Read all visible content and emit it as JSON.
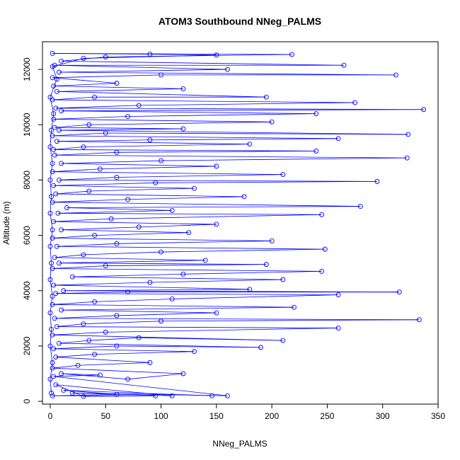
{
  "colors": {
    "series": "#0000ff",
    "axis": "#000000",
    "background": "#ffffff"
  },
  "chart_data": {
    "type": "line",
    "title": "ATOM3 Southbound NNeg_PALMS",
    "xlabel": "NNeg_PALMS",
    "ylabel": "Altitude (m)",
    "xlim": [
      -7,
      350
    ],
    "ylim": [
      -100,
      13000
    ],
    "xticks": [
      0,
      50,
      100,
      150,
      200,
      250,
      300,
      350
    ],
    "yticks": [
      0,
      2000,
      4000,
      6000,
      8000,
      10000,
      12000
    ],
    "grid": false,
    "legend": "none",
    "series": [
      {
        "markers": "open-circle",
        "points": [
          [
            146,
            200
          ],
          [
            12,
            400
          ],
          [
            60,
            250
          ],
          [
            2,
            200
          ],
          [
            95,
            200
          ],
          [
            30,
            180
          ],
          [
            5,
            600
          ],
          [
            110,
            200
          ],
          [
            20,
            300
          ],
          [
            160,
            200
          ],
          [
            3,
            900
          ],
          [
            45,
            950
          ],
          [
            10,
            1000
          ],
          [
            70,
            800
          ],
          [
            120,
            1000
          ],
          [
            2,
            1200
          ],
          [
            25,
            1300
          ],
          [
            90,
            1400
          ],
          [
            5,
            1600
          ],
          [
            40,
            1700
          ],
          [
            130,
            1800
          ],
          [
            3,
            1900
          ],
          [
            60,
            2000
          ],
          [
            190,
            1950
          ],
          [
            8,
            2100
          ],
          [
            35,
            2200
          ],
          [
            80,
            2300
          ],
          [
            210,
            2200
          ],
          [
            2,
            2400
          ],
          [
            50,
            2500
          ],
          [
            260,
            2650
          ],
          [
            6,
            2700
          ],
          [
            30,
            2800
          ],
          [
            100,
            2900
          ],
          [
            333,
            2950
          ],
          [
            4,
            3000
          ],
          [
            60,
            3100
          ],
          [
            150,
            3200
          ],
          [
            10,
            3300
          ],
          [
            220,
            3400
          ],
          [
            2,
            3500
          ],
          [
            40,
            3600
          ],
          [
            110,
            3700
          ],
          [
            260,
            3850
          ],
          [
            5,
            3900
          ],
          [
            70,
            3950
          ],
          [
            315,
            3950
          ],
          [
            12,
            4000
          ],
          [
            180,
            4050
          ],
          [
            3,
            4200
          ],
          [
            90,
            4300
          ],
          [
            210,
            4400
          ],
          [
            20,
            4500
          ],
          [
            120,
            4600
          ],
          [
            245,
            4700
          ],
          [
            2,
            4800
          ],
          [
            50,
            4900
          ],
          [
            195,
            4950
          ],
          [
            8,
            5000
          ],
          [
            140,
            5100
          ],
          [
            4,
            5200
          ],
          [
            30,
            5300
          ],
          [
            100,
            5400
          ],
          [
            248,
            5500
          ],
          [
            6,
            5600
          ],
          [
            60,
            5700
          ],
          [
            200,
            5800
          ],
          [
            2,
            5900
          ],
          [
            40,
            6000
          ],
          [
            125,
            6100
          ],
          [
            10,
            6200
          ],
          [
            80,
            6300
          ],
          [
            150,
            6400
          ],
          [
            3,
            6500
          ],
          [
            55,
            6600
          ],
          [
            245,
            6750
          ],
          [
            7,
            6800
          ],
          [
            110,
            6900
          ],
          [
            15,
            7000
          ],
          [
            280,
            7050
          ],
          [
            2,
            7200
          ],
          [
            70,
            7300
          ],
          [
            175,
            7400
          ],
          [
            5,
            7500
          ],
          [
            35,
            7600
          ],
          [
            130,
            7700
          ],
          [
            3,
            7800
          ],
          [
            95,
            7900
          ],
          [
            295,
            7950
          ],
          [
            8,
            8000
          ],
          [
            60,
            8100
          ],
          [
            210,
            8200
          ],
          [
            2,
            8300
          ],
          [
            45,
            8400
          ],
          [
            150,
            8500
          ],
          [
            10,
            8600
          ],
          [
            100,
            8700
          ],
          [
            322,
            8800
          ],
          [
            4,
            8900
          ],
          [
            60,
            9000
          ],
          [
            240,
            9050
          ],
          [
            3,
            9100
          ],
          [
            30,
            9200
          ],
          [
            180,
            9300
          ],
          [
            6,
            9400
          ],
          [
            90,
            9450
          ],
          [
            260,
            9500
          ],
          [
            2,
            9600
          ],
          [
            50,
            9700
          ],
          [
            323,
            9650
          ],
          [
            8,
            9800
          ],
          [
            120,
            9850
          ],
          [
            4,
            9900
          ],
          [
            35,
            10000
          ],
          [
            200,
            10100
          ],
          [
            3,
            10200
          ],
          [
            70,
            10300
          ],
          [
            240,
            10400
          ],
          [
            10,
            10500
          ],
          [
            337,
            10550
          ],
          [
            5,
            10600
          ],
          [
            80,
            10700
          ],
          [
            275,
            10800
          ],
          [
            2,
            10900
          ],
          [
            40,
            11000
          ],
          [
            195,
            11000
          ],
          [
            6,
            11200
          ],
          [
            120,
            11300
          ],
          [
            3,
            11400
          ],
          [
            60,
            11500
          ],
          [
            2,
            11700
          ],
          [
            100,
            11800
          ],
          [
            312,
            11800
          ],
          [
            8,
            11900
          ],
          [
            160,
            12000
          ],
          [
            4,
            12150
          ],
          [
            265,
            12150
          ],
          [
            10,
            12300
          ],
          [
            50,
            12450
          ],
          [
            218,
            12540
          ],
          [
            2,
            12580
          ],
          [
            90,
            12550
          ],
          [
            150,
            12520
          ],
          [
            30,
            12400
          ],
          [
            2,
            12100
          ],
          [
            6,
            11650
          ],
          [
            0,
            11000
          ],
          [
            3,
            10400
          ],
          [
            1,
            9800
          ],
          [
            0,
            9200
          ],
          [
            2,
            8600
          ],
          [
            0,
            8000
          ],
          [
            1,
            7400
          ],
          [
            0,
            6800
          ],
          [
            2,
            6200
          ],
          [
            0,
            5600
          ],
          [
            1,
            5000
          ],
          [
            0,
            4400
          ],
          [
            2,
            3800
          ],
          [
            0,
            3200
          ],
          [
            1,
            2600
          ],
          [
            0,
            2000
          ],
          [
            2,
            1400
          ],
          [
            0,
            800
          ],
          [
            1,
            300
          ]
        ]
      }
    ]
  }
}
